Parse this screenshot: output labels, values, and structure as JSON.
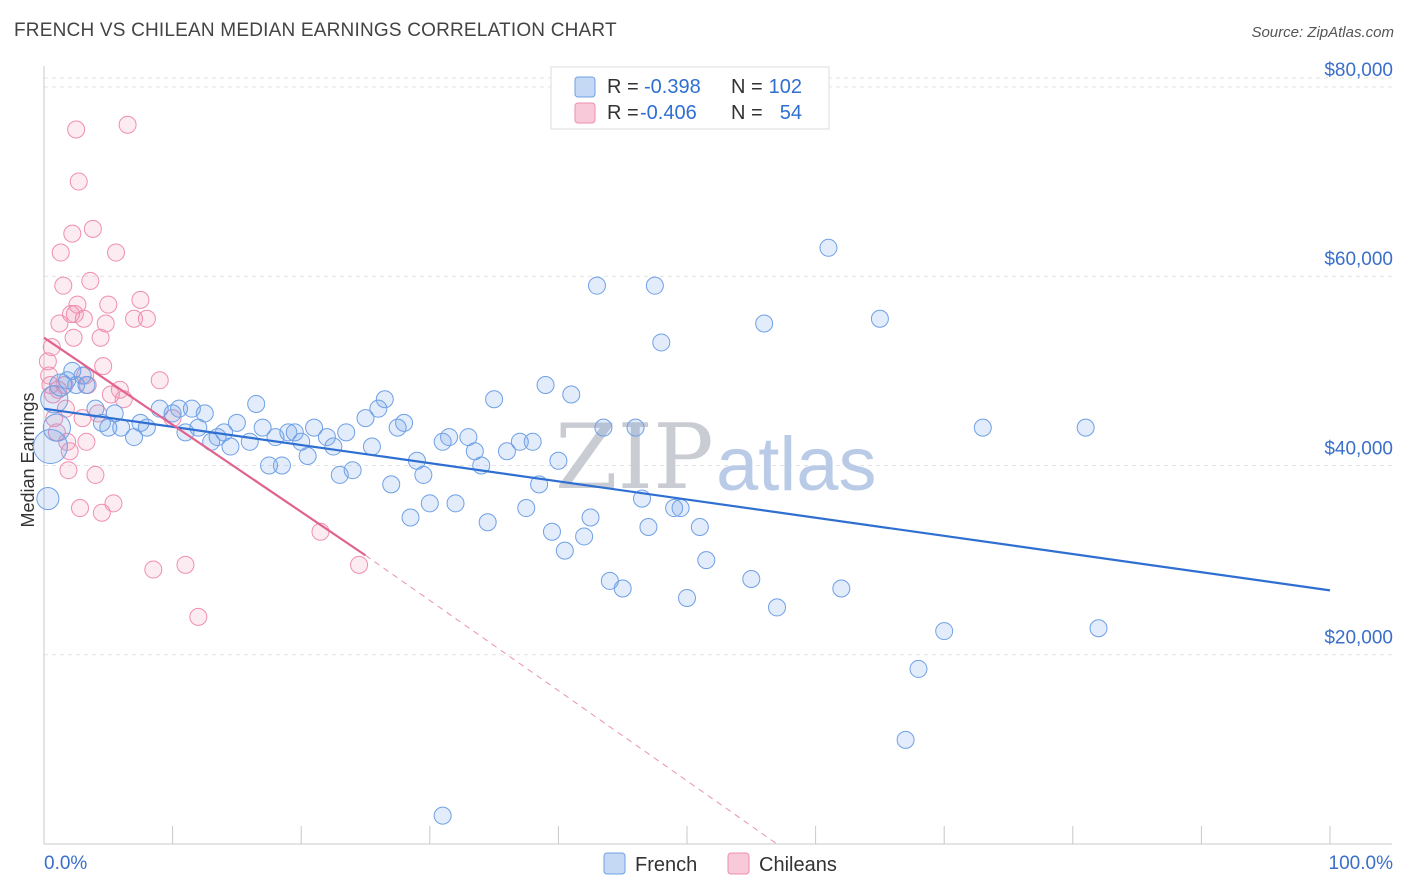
{
  "title": "FRENCH VS CHILEAN MEDIAN EARNINGS CORRELATION CHART",
  "source": "Source: ZipAtlas.com",
  "watermark": {
    "zip": "ZIP",
    "atlas": "atlas"
  },
  "colors": {
    "french": "#6fa0e6",
    "french_line": "#2f6fd1",
    "chilean": "#ef8fb0",
    "chilean_line": "#e0638f"
  },
  "legend": {
    "rows": [
      {
        "r_label": "R = ",
        "r_value": "-0.398",
        "n_label": "N = ",
        "n_value": "102"
      },
      {
        "r_label": "R = ",
        "r_value": "-0.406",
        "n_label": "N = ",
        "n_value": "54"
      }
    ]
  },
  "bottom_legend": [
    "French",
    "Chileans"
  ],
  "chart_data": {
    "type": "scatter",
    "title": "FRENCH VS CHILEAN MEDIAN EARNINGS CORRELATION CHART",
    "xlabel": "",
    "ylabel": "Median Earnings",
    "xlim": [
      0,
      100
    ],
    "ylim": [
      0,
      82000
    ],
    "x_tick_labels": [
      "0.0%",
      "100.0%"
    ],
    "y_ticks": [
      {
        "value": 20000,
        "label": "$20,000"
      },
      {
        "value": 40000,
        "label": "$40,000"
      },
      {
        "value": 60000,
        "label": "$60,000"
      },
      {
        "value": 80000,
        "label": "$80,000"
      }
    ],
    "series": [
      {
        "name": "French",
        "r": -0.398,
        "n": 102,
        "trend": {
          "x0": 0,
          "y0": 46000,
          "x1": 100,
          "y1": 26800
        },
        "points": [
          [
            0.3,
            36500,
            1.3
          ],
          [
            0.5,
            42000,
            2
          ],
          [
            0.8,
            47000,
            1.6
          ],
          [
            1,
            44000,
            1.6
          ],
          [
            1.3,
            48500,
            1.3
          ],
          [
            1.8,
            49000,
            1
          ],
          [
            2.2,
            50000,
            1
          ],
          [
            2.5,
            48500,
            1
          ],
          [
            3,
            49500,
            1
          ],
          [
            3.3,
            48500,
            1
          ],
          [
            4,
            46000,
            1
          ],
          [
            4.5,
            44500,
            1
          ],
          [
            5,
            44000,
            1
          ],
          [
            5.5,
            45500,
            1
          ],
          [
            6,
            44000,
            1
          ],
          [
            7,
            43000,
            1
          ],
          [
            7.5,
            44500,
            1
          ],
          [
            8,
            44000,
            1
          ],
          [
            9,
            46000,
            1
          ],
          [
            10,
            45500,
            1
          ],
          [
            10.5,
            46000,
            1
          ],
          [
            11,
            43500,
            1
          ],
          [
            11.5,
            46000,
            1
          ],
          [
            12,
            44000,
            1
          ],
          [
            12.5,
            45500,
            1
          ],
          [
            13,
            42500,
            1
          ],
          [
            13.5,
            43000,
            1
          ],
          [
            14,
            43500,
            1
          ],
          [
            14.5,
            42000,
            1
          ],
          [
            15,
            44500,
            1
          ],
          [
            16,
            42500,
            1
          ],
          [
            16.5,
            46500,
            1
          ],
          [
            17,
            44000,
            1
          ],
          [
            17.5,
            40000,
            1
          ],
          [
            18,
            43000,
            1
          ],
          [
            18.5,
            40000,
            1
          ],
          [
            19,
            43500,
            1
          ],
          [
            19.5,
            43500,
            1
          ],
          [
            20,
            42500,
            1
          ],
          [
            20.5,
            41000,
            1
          ],
          [
            21,
            44000,
            1
          ],
          [
            22,
            43000,
            1
          ],
          [
            22.5,
            42000,
            1
          ],
          [
            23,
            39000,
            1
          ],
          [
            23.5,
            43500,
            1
          ],
          [
            24,
            39500,
            1
          ],
          [
            25,
            45000,
            1
          ],
          [
            25.5,
            42000,
            1
          ],
          [
            26,
            46000,
            1
          ],
          [
            26.5,
            47000,
            1
          ],
          [
            27,
            38000,
            1
          ],
          [
            27.5,
            44000,
            1
          ],
          [
            28,
            44500,
            1
          ],
          [
            28.5,
            34500,
            1
          ],
          [
            29,
            40500,
            1
          ],
          [
            29.5,
            39000,
            1
          ],
          [
            30,
            36000,
            1
          ],
          [
            31,
            42500,
            1
          ],
          [
            31.5,
            43000,
            1
          ],
          [
            32,
            36000,
            1
          ],
          [
            33,
            43000,
            1
          ],
          [
            33.5,
            41500,
            1
          ],
          [
            34,
            40000,
            1
          ],
          [
            34.5,
            34000,
            1
          ],
          [
            35,
            47000,
            1
          ],
          [
            36,
            41500,
            1
          ],
          [
            37,
            42500,
            1
          ],
          [
            37.5,
            35500,
            1
          ],
          [
            38,
            42500,
            1
          ],
          [
            38.5,
            38000,
            1
          ],
          [
            39,
            48500,
            1
          ],
          [
            39.5,
            33000,
            1
          ],
          [
            40,
            40500,
            1
          ],
          [
            40.5,
            31000,
            1
          ],
          [
            41,
            47500,
            1
          ],
          [
            42,
            32500,
            1
          ],
          [
            42.5,
            34500,
            1
          ],
          [
            43,
            59000,
            1
          ],
          [
            43.5,
            44000,
            1
          ],
          [
            44,
            27800,
            1
          ],
          [
            45,
            27000,
            1
          ],
          [
            46,
            44000,
            1
          ],
          [
            46.5,
            36500,
            1
          ],
          [
            47,
            33500,
            1
          ],
          [
            47.5,
            59000,
            1
          ],
          [
            48,
            53000,
            1
          ],
          [
            49,
            35500,
            1
          ],
          [
            49.5,
            35500,
            1
          ],
          [
            50,
            26000,
            1
          ],
          [
            51,
            33500,
            1
          ],
          [
            51.5,
            30000,
            1
          ],
          [
            55,
            28000,
            1
          ],
          [
            56,
            55000,
            1
          ],
          [
            57,
            25000,
            1
          ],
          [
            61,
            63000,
            1
          ],
          [
            62,
            27000,
            1
          ],
          [
            65,
            55500,
            1
          ],
          [
            67,
            11000,
            1
          ],
          [
            68,
            18500,
            1
          ],
          [
            70,
            22500,
            1
          ],
          [
            73,
            44000,
            1
          ],
          [
            81,
            44000,
            1
          ],
          [
            82,
            22800,
            1
          ],
          [
            31,
            3000,
            1
          ]
        ]
      },
      {
        "name": "Chileans",
        "r": -0.406,
        "n": 54,
        "trend": {
          "x0": 0,
          "y0": 53500,
          "x1": 25,
          "y1": 30500,
          "dash_x1": 57,
          "dash_y1": 0
        },
        "points": [
          [
            0.3,
            51000,
            1
          ],
          [
            0.4,
            49500,
            1
          ],
          [
            0.5,
            48500,
            1
          ],
          [
            0.6,
            52500,
            1
          ],
          [
            0.7,
            47500,
            1
          ],
          [
            0.8,
            45000,
            1
          ],
          [
            1,
            43500,
            1
          ],
          [
            1.1,
            48000,
            1
          ],
          [
            1.2,
            55000,
            1
          ],
          [
            1.3,
            62500,
            1
          ],
          [
            1.5,
            59000,
            1
          ],
          [
            1.6,
            48500,
            1
          ],
          [
            1.8,
            42500,
            1
          ],
          [
            1.9,
            39500,
            1
          ],
          [
            2,
            41500,
            1
          ],
          [
            2.1,
            56000,
            1
          ],
          [
            2.2,
            64500,
            1
          ],
          [
            2.3,
            53500,
            1
          ],
          [
            2.5,
            75500,
            1
          ],
          [
            2.6,
            57000,
            1
          ],
          [
            2.7,
            70000,
            1
          ],
          [
            2.8,
            35500,
            1
          ],
          [
            3,
            45000,
            1
          ],
          [
            3.1,
            55500,
            1
          ],
          [
            3.2,
            49500,
            1
          ],
          [
            3.4,
            48500,
            1
          ],
          [
            3.6,
            59500,
            1
          ],
          [
            3.8,
            65000,
            1
          ],
          [
            4,
            39000,
            1
          ],
          [
            4.2,
            45500,
            1
          ],
          [
            4.4,
            53500,
            1
          ],
          [
            4.6,
            50500,
            1
          ],
          [
            4.8,
            55000,
            1
          ],
          [
            5,
            57000,
            1
          ],
          [
            5.2,
            47500,
            1
          ],
          [
            5.4,
            36000,
            1
          ],
          [
            5.6,
            62500,
            1
          ],
          [
            5.9,
            48000,
            1
          ],
          [
            6.2,
            47000,
            1
          ],
          [
            6.5,
            76000,
            1
          ],
          [
            7,
            55500,
            1
          ],
          [
            7.5,
            57500,
            1
          ],
          [
            8,
            55500,
            1
          ],
          [
            8.5,
            29000,
            1
          ],
          [
            9,
            49000,
            1
          ],
          [
            10,
            45000,
            1
          ],
          [
            11,
            29500,
            1
          ],
          [
            12,
            24000,
            1
          ],
          [
            21.5,
            33000,
            1
          ],
          [
            24.5,
            29500,
            1
          ],
          [
            3.3,
            42500,
            1
          ],
          [
            2.4,
            56000,
            1
          ],
          [
            4.5,
            35000,
            1
          ],
          [
            1.7,
            46000,
            1
          ]
        ]
      }
    ]
  }
}
